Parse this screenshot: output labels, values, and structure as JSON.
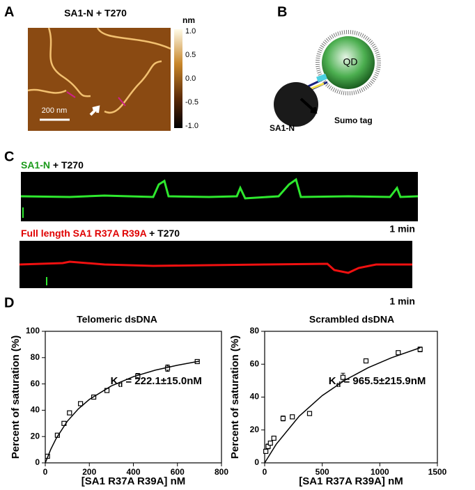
{
  "panels": {
    "A": {
      "label": "A",
      "title": "SA1-N + T270",
      "scale_bar": "200 nm",
      "colorbar": {
        "unit": "nm",
        "labels": [
          "1.0",
          "0.5",
          "0.0",
          "-0.5",
          "-1.0"
        ]
      }
    },
    "B": {
      "label": "B",
      "qd": "QD",
      "protein": "SA1-N",
      "tag": "Sumo tag"
    },
    "C": {
      "label": "C",
      "trace1": {
        "protein": "SA1-N",
        "dna": " + T270",
        "time": "1 min"
      },
      "trace2": {
        "protein": "Full length SA1 R37A R39A",
        "dna": " + T270",
        "time": "1 min"
      }
    },
    "D": {
      "label": "D"
    }
  },
  "chart_data": [
    {
      "type": "scatter",
      "title": "Telomeric dsDNA",
      "x_label": "[SA1 R37A R39A] nM",
      "y_label": "Percent of saturation (%)",
      "annotation": {
        "symbol": "K",
        "subscript": "d",
        "text": " = 222.1±15.0nM"
      },
      "xlim": [
        0,
        800
      ],
      "xticks": [
        0,
        200,
        400,
        600,
        800
      ],
      "ylim": [
        0,
        100
      ],
      "yticks": [
        0,
        20,
        40,
        60,
        80,
        100
      ],
      "series": [
        {
          "style": "markers",
          "color": "#000000",
          "x": [
            10,
            55,
            85,
            110,
            160,
            220,
            280,
            420,
            555,
            690
          ],
          "values": [
            5,
            21,
            30,
            38,
            45,
            50,
            55,
            66,
            72,
            77
          ],
          "errors": [
            1,
            1,
            1.5,
            1,
            1,
            1,
            1,
            2,
            2.5,
            1
          ]
        },
        {
          "style": "line",
          "color": "#000000",
          "x": [
            0,
            25,
            50,
            100,
            150,
            200,
            300,
            400,
            500,
            600,
            700
          ],
          "values": [
            0,
            10.3,
            18.7,
            31.6,
            41,
            48.2,
            58.5,
            65.5,
            70.5,
            74.2,
            77.3
          ]
        }
      ]
    },
    {
      "type": "scatter",
      "title": "Scrambled dsDNA",
      "x_label": "[SA1 R37A R39A] nM",
      "y_label": "Percent of saturation (%)",
      "annotation": {
        "symbol": "K",
        "subscript": "d",
        "text": " = 965.5±215.9nM"
      },
      "xlim": [
        0,
        1500
      ],
      "xticks": [
        0,
        500,
        1000,
        1500
      ],
      "ylim": [
        0,
        80
      ],
      "yticks": [
        0,
        20,
        40,
        60,
        80
      ],
      "series": [
        {
          "style": "markers",
          "color": "#000000",
          "x": [
            10,
            30,
            50,
            80,
            160,
            240,
            390,
            680,
            880,
            1160,
            1350
          ],
          "values": [
            7,
            10,
            12,
            15,
            27,
            28,
            30,
            52,
            62,
            67,
            69
          ],
          "errors": [
            1,
            1.5,
            1,
            1,
            1.5,
            1,
            1,
            2.5,
            1,
            1,
            1.5
          ]
        },
        {
          "style": "line",
          "color": "#000000",
          "x": [
            0,
            100,
            300,
            500,
            700,
            900,
            1100,
            1350
          ],
          "values": [
            0,
            11.3,
            28.4,
            40.9,
            50.4,
            57.9,
            63.9,
            70
          ]
        }
      ]
    }
  ]
}
